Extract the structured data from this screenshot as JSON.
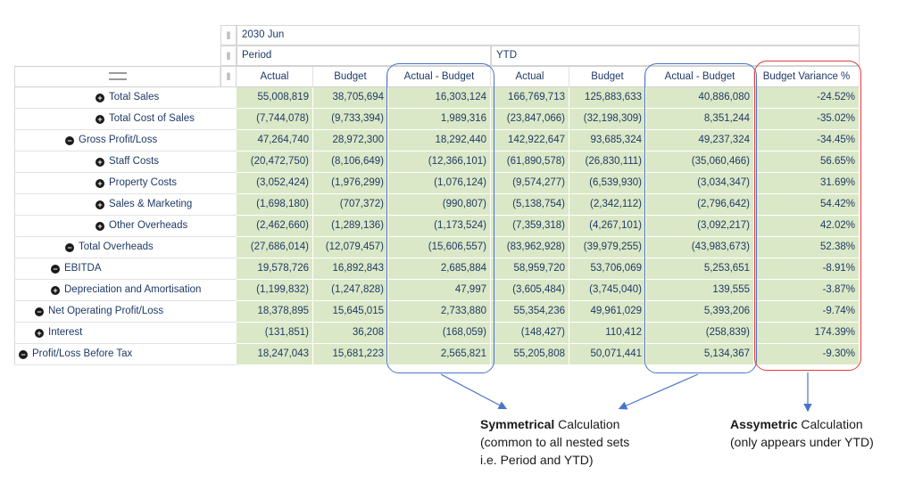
{
  "header": {
    "period_label": "2030 Jun",
    "group_period": "Period",
    "group_ytd": "YTD"
  },
  "grip_icon": "drag-handle-icon",
  "columns": [
    "Actual",
    "Budget",
    "Actual - Budget",
    "Actual",
    "Budget",
    "Actual - Budget",
    "Budget Variance %"
  ],
  "rows": [
    {
      "label": "Total Sales",
      "toggle": "expand",
      "values": [
        "55,008,819",
        "38,705,694",
        "16,303,124",
        "166,769,713",
        "125,883,633",
        "40,886,080",
        "-24.52%"
      ]
    },
    {
      "label": "Total Cost of Sales",
      "toggle": "expand",
      "values": [
        "(7,744,078)",
        "(9,733,394)",
        "1,989,316",
        "(23,847,066)",
        "(32,198,309)",
        "8,351,244",
        "-35.02%"
      ]
    },
    {
      "label": "Gross Profit/Loss",
      "toggle": "collapse",
      "values": [
        "47,264,740",
        "28,972,300",
        "18,292,440",
        "142,922,647",
        "93,685,324",
        "49,237,324",
        "-34.45%"
      ]
    },
    {
      "label": "Staff Costs",
      "toggle": "expand",
      "values": [
        "(20,472,750)",
        "(8,106,649)",
        "(12,366,101)",
        "(61,890,578)",
        "(26,830,111)",
        "(35,060,466)",
        "56.65%"
      ]
    },
    {
      "label": "Property Costs",
      "toggle": "expand",
      "values": [
        "(3,052,424)",
        "(1,976,299)",
        "(1,076,124)",
        "(9,574,277)",
        "(6,539,930)",
        "(3,034,347)",
        "31.69%"
      ]
    },
    {
      "label": "Sales & Marketing",
      "toggle": "expand",
      "values": [
        "(1,698,180)",
        "(707,372)",
        "(990,807)",
        "(5,138,754)",
        "(2,342,112)",
        "(2,796,642)",
        "54.42%"
      ]
    },
    {
      "label": "Other Overheads",
      "toggle": "expand",
      "values": [
        "(2,462,660)",
        "(1,289,136)",
        "(1,173,524)",
        "(7,359,318)",
        "(4,267,101)",
        "(3,092,217)",
        "42.02%"
      ]
    },
    {
      "label": "Total Overheads",
      "toggle": "collapse",
      "values": [
        "(27,686,014)",
        "(12,079,457)",
        "(15,606,557)",
        "(83,962,928)",
        "(39,979,255)",
        "(43,983,673)",
        "52.38%"
      ]
    },
    {
      "label": "EBITDA",
      "toggle": "collapse",
      "values": [
        "19,578,726",
        "16,892,843",
        "2,685,884",
        "58,959,720",
        "53,706,069",
        "5,253,651",
        "-8.91%"
      ]
    },
    {
      "label": "Depreciation and Amortisation",
      "toggle": "expand",
      "values": [
        "(1,199,832)",
        "(1,247,828)",
        "47,997",
        "(3,605,484)",
        "(3,745,040)",
        "139,555",
        "-3.87%"
      ]
    },
    {
      "label": "Net Operating Profit/Loss",
      "toggle": "collapse",
      "values": [
        "18,378,895",
        "15,645,015",
        "2,733,880",
        "55,354,236",
        "49,961,029",
        "5,393,206",
        "-9.74%"
      ]
    },
    {
      "label": "Interest",
      "toggle": "expand",
      "values": [
        "(131,851)",
        "36,208",
        "(168,059)",
        "(148,427)",
        "110,412",
        "(258,839)",
        "174.39%"
      ]
    },
    {
      "label": "Profit/Loss Before Tax",
      "toggle": "collapse",
      "values": [
        "18,247,043",
        "15,681,223",
        "2,565,821",
        "55,205,808",
        "50,071,441",
        "5,134,367",
        "-9.30%"
      ]
    }
  ],
  "annotations": {
    "symmetrical": {
      "bold": "Symmetrical",
      "rest": " Calculation",
      "line2": "(common to all nested sets",
      "line3": "i.e. Period and YTD)",
      "outline_color": "#4a74c9"
    },
    "asymmetric": {
      "bold": "Assymetric",
      "rest": " Calculation",
      "line2": "(only appears under YTD)",
      "outline_color": "#e23b3b"
    }
  }
}
